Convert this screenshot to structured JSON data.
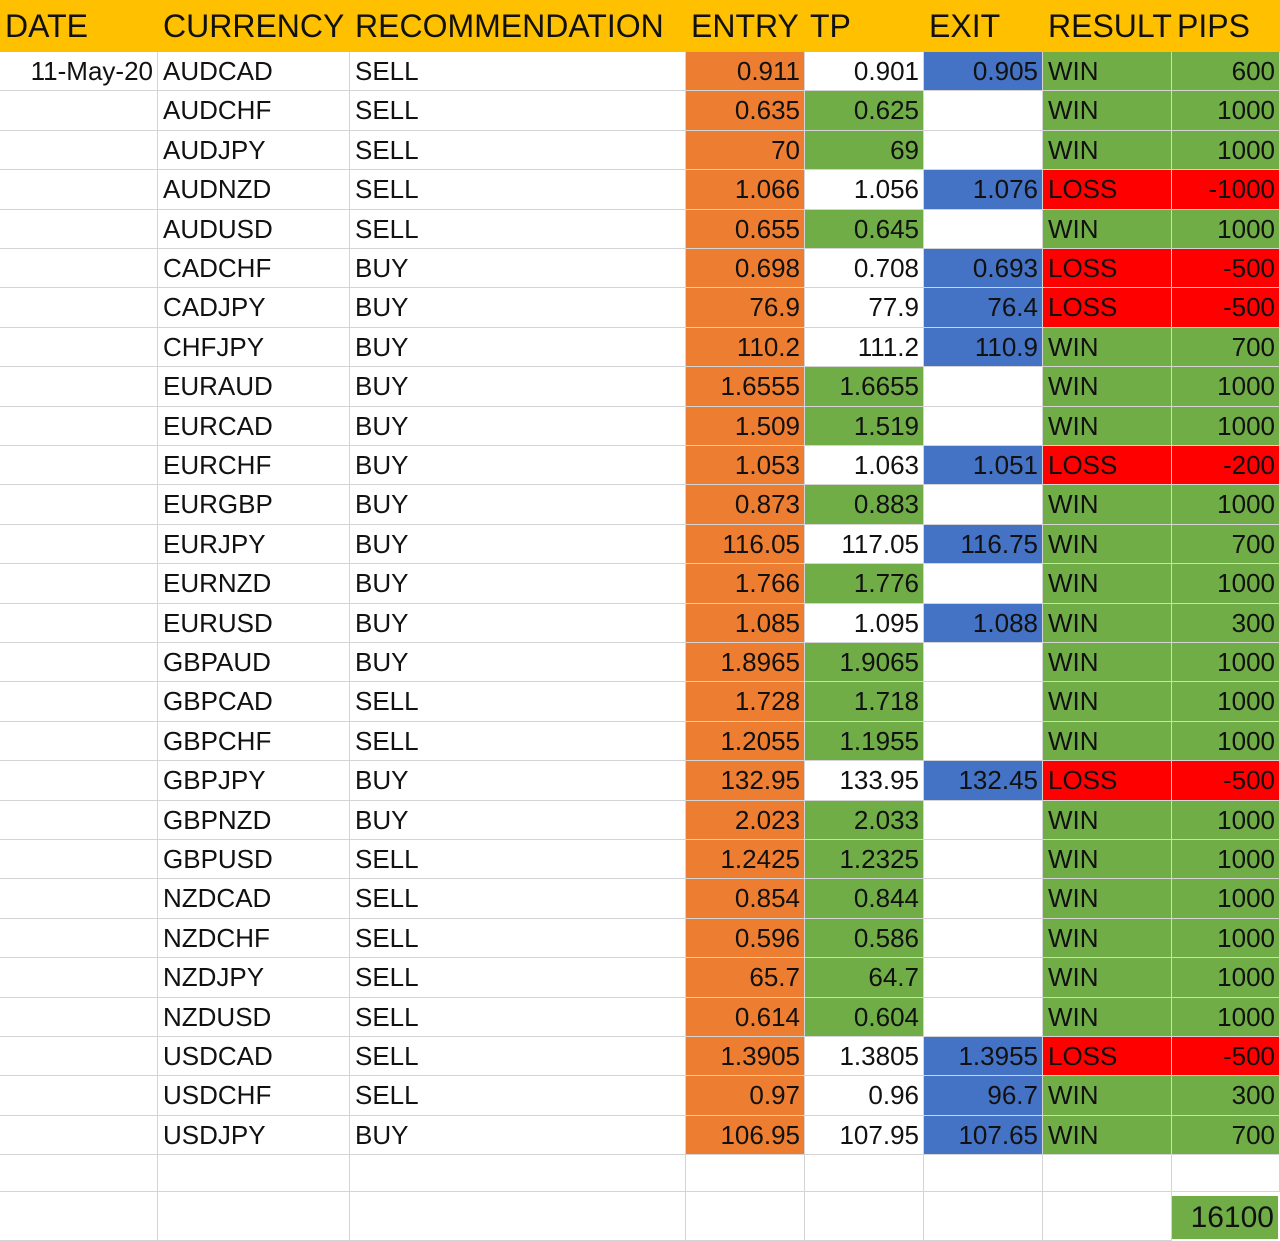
{
  "headers": {
    "date": "DATE",
    "currency": "CURRENCY",
    "recommendation": "RECOMMENDATION",
    "entry": "ENTRY",
    "tp": "TP",
    "exit": "EXIT",
    "result": "RESULT",
    "pips": "PIPS"
  },
  "colors": {
    "header": "#ffc000",
    "entry": "#ed7d31",
    "tp_hit": "#70ad47",
    "exit": "#4472c4",
    "win": "#70ad47",
    "loss": "#ff0000"
  },
  "rows": [
    {
      "date": "11-May-20",
      "pair": "AUDCAD",
      "rec": "SELL",
      "entry": "0.911",
      "tp": "0.901",
      "exit": "0.905",
      "result": "WIN",
      "pips": "600"
    },
    {
      "date": "",
      "pair": "AUDCHF",
      "rec": "SELL",
      "entry": "0.635",
      "tp": "0.625",
      "exit": "",
      "result": "WIN",
      "pips": "1000"
    },
    {
      "date": "",
      "pair": "AUDJPY",
      "rec": "SELL",
      "entry": "70",
      "tp": "69",
      "exit": "",
      "result": "WIN",
      "pips": "1000"
    },
    {
      "date": "",
      "pair": "AUDNZD",
      "rec": "SELL",
      "entry": "1.066",
      "tp": "1.056",
      "exit": "1.076",
      "result": "LOSS",
      "pips": "-1000"
    },
    {
      "date": "",
      "pair": "AUDUSD",
      "rec": "SELL",
      "entry": "0.655",
      "tp": "0.645",
      "exit": "",
      "result": "WIN",
      "pips": "1000"
    },
    {
      "date": "",
      "pair": "CADCHF",
      "rec": "BUY",
      "entry": "0.698",
      "tp": "0.708",
      "exit": "0.693",
      "result": "LOSS",
      "pips": "-500"
    },
    {
      "date": "",
      "pair": "CADJPY",
      "rec": "BUY",
      "entry": "76.9",
      "tp": "77.9",
      "exit": "76.4",
      "result": "LOSS",
      "pips": "-500"
    },
    {
      "date": "",
      "pair": "CHFJPY",
      "rec": "BUY",
      "entry": "110.2",
      "tp": "111.2",
      "exit": "110.9",
      "result": "WIN",
      "pips": "700"
    },
    {
      "date": "",
      "pair": "EURAUD",
      "rec": "BUY",
      "entry": "1.6555",
      "tp": "1.6655",
      "exit": "",
      "result": "WIN",
      "pips": "1000"
    },
    {
      "date": "",
      "pair": "EURCAD",
      "rec": "BUY",
      "entry": "1.509",
      "tp": "1.519",
      "exit": "",
      "result": "WIN",
      "pips": "1000"
    },
    {
      "date": "",
      "pair": "EURCHF",
      "rec": "BUY",
      "entry": "1.053",
      "tp": "1.063",
      "exit": "1.051",
      "result": "LOSS",
      "pips": "-200"
    },
    {
      "date": "",
      "pair": "EURGBP",
      "rec": "BUY",
      "entry": "0.873",
      "tp": "0.883",
      "exit": "",
      "result": "WIN",
      "pips": "1000"
    },
    {
      "date": "",
      "pair": "EURJPY",
      "rec": "BUY",
      "entry": "116.05",
      "tp": "117.05",
      "exit": "116.75",
      "result": "WIN",
      "pips": "700"
    },
    {
      "date": "",
      "pair": "EURNZD",
      "rec": "BUY",
      "entry": "1.766",
      "tp": "1.776",
      "exit": "",
      "result": "WIN",
      "pips": "1000"
    },
    {
      "date": "",
      "pair": "EURUSD",
      "rec": "BUY",
      "entry": "1.085",
      "tp": "1.095",
      "exit": "1.088",
      "result": "WIN",
      "pips": "300"
    },
    {
      "date": "",
      "pair": "GBPAUD",
      "rec": "BUY",
      "entry": "1.8965",
      "tp": "1.9065",
      "exit": "",
      "result": "WIN",
      "pips": "1000"
    },
    {
      "date": "",
      "pair": "GBPCAD",
      "rec": "SELL",
      "entry": "1.728",
      "tp": "1.718",
      "exit": "",
      "result": "WIN",
      "pips": "1000"
    },
    {
      "date": "",
      "pair": "GBPCHF",
      "rec": "SELL",
      "entry": "1.2055",
      "tp": "1.1955",
      "exit": "",
      "result": "WIN",
      "pips": "1000"
    },
    {
      "date": "",
      "pair": "GBPJPY",
      "rec": "BUY",
      "entry": "132.95",
      "tp": "133.95",
      "exit": "132.45",
      "result": "LOSS",
      "pips": "-500"
    },
    {
      "date": "",
      "pair": "GBPNZD",
      "rec": "BUY",
      "entry": "2.023",
      "tp": "2.033",
      "exit": "",
      "result": "WIN",
      "pips": "1000"
    },
    {
      "date": "",
      "pair": "GBPUSD",
      "rec": "SELL",
      "entry": "1.2425",
      "tp": "1.2325",
      "exit": "",
      "result": "WIN",
      "pips": "1000"
    },
    {
      "date": "",
      "pair": "NZDCAD",
      "rec": "SELL",
      "entry": "0.854",
      "tp": "0.844",
      "exit": "",
      "result": "WIN",
      "pips": "1000"
    },
    {
      "date": "",
      "pair": "NZDCHF",
      "rec": "SELL",
      "entry": "0.596",
      "tp": "0.586",
      "exit": "",
      "result": "WIN",
      "pips": "1000"
    },
    {
      "date": "",
      "pair": "NZDJPY",
      "rec": "SELL",
      "entry": "65.7",
      "tp": "64.7",
      "exit": "",
      "result": "WIN",
      "pips": "1000"
    },
    {
      "date": "",
      "pair": "NZDUSD",
      "rec": "SELL",
      "entry": "0.614",
      "tp": "0.604",
      "exit": "",
      "result": "WIN",
      "pips": "1000"
    },
    {
      "date": "",
      "pair": "USDCAD",
      "rec": "SELL",
      "entry": "1.3905",
      "tp": "1.3805",
      "exit": "1.3955",
      "result": "LOSS",
      "pips": "-500"
    },
    {
      "date": "",
      "pair": "USDCHF",
      "rec": "SELL",
      "entry": "0.97",
      "tp": "0.96",
      "exit": "96.7",
      "result": "WIN",
      "pips": "300"
    },
    {
      "date": "",
      "pair": "USDJPY",
      "rec": "BUY",
      "entry": "106.95",
      "tp": "107.95",
      "exit": "107.65",
      "result": "WIN",
      "pips": "700"
    }
  ],
  "total_pips": "16100"
}
